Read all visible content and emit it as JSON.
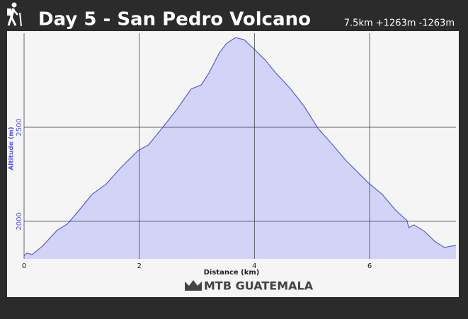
{
  "header": {
    "title": "Day 5 - San Pedro Volcano",
    "stats": "7.5km +1263m -1263m"
  },
  "chart_data": {
    "type": "area",
    "x_label": "Distance (km)",
    "y_label": "Altitude (m)",
    "x": [
      0,
      0.05,
      0.14,
      0.32,
      0.57,
      0.75,
      0.93,
      1.18,
      1.43,
      1.67,
      1.98,
      2.16,
      2.41,
      2.65,
      2.9,
      3.08,
      3.21,
      3.39,
      3.51,
      3.67,
      3.82,
      4.0,
      4.19,
      4.37,
      4.62,
      4.86,
      5.11,
      5.36,
      5.6,
      5.97,
      6.22,
      6.46,
      6.65,
      6.68,
      6.77,
      6.95,
      7.14,
      7.3,
      7.5
    ],
    "values": [
      1816,
      1831,
      1823,
      1868,
      1951,
      1985,
      2049,
      2143,
      2199,
      2282,
      2376,
      2406,
      2500,
      2594,
      2703,
      2726,
      2789,
      2895,
      2944,
      2977,
      2966,
      2914,
      2857,
      2789,
      2707,
      2613,
      2492,
      2406,
      2320,
      2207,
      2143,
      2056,
      2004,
      1966,
      1981,
      1947,
      1891,
      1861,
      1872
    ],
    "color": "#5a5ae0",
    "fill": "#d3d3f7",
    "xlim": [
      0,
      7.5
    ],
    "ylim": [
      1800,
      3000
    ],
    "xticks": [
      0,
      2,
      4,
      6
    ],
    "yticks": [
      2000,
      2500
    ],
    "grid": true
  },
  "logo": "MTB GUATEMALA"
}
